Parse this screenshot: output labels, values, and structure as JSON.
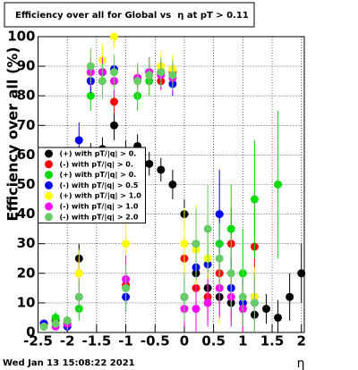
{
  "chart_data": {
    "type": "scatter",
    "title": "Efficiency over all for Global vs  η at pT > 0.11",
    "y_label": "Efficiency over all (%)",
    "x_label": "η",
    "timestamp": "Wed Jan 13 15:08:22 2021",
    "xlim": [
      -2.5,
      2.05
    ],
    "ylim": [
      0,
      100
    ],
    "xticks": [
      -2.5,
      -2,
      -1.5,
      -1,
      -0.5,
      0,
      0.5,
      1,
      1.5,
      2
    ],
    "yticks": [
      0,
      10,
      20,
      30,
      40,
      50,
      60,
      70,
      80,
      90,
      100
    ],
    "grid": true,
    "legend_position": "middle-left",
    "x": [
      -2.4,
      -2.2,
      -2.0,
      -1.8,
      -1.6,
      -1.4,
      -1.2,
      -1.0,
      -0.8,
      -0.6,
      -0.4,
      -0.2,
      0.0,
      0.2,
      0.4,
      0.6,
      0.8,
      1.0,
      1.2,
      1.4,
      1.6,
      1.8,
      2.0
    ],
    "series": [
      {
        "name": "(+) with pT/|q| > 0.",
        "color": "#000000",
        "values": [
          3,
          4,
          4,
          25,
          60,
          62,
          70,
          60,
          63,
          57,
          55,
          50,
          40,
          20,
          15,
          12,
          10,
          8,
          6,
          8,
          5,
          12,
          20
        ],
        "errors": [
          1,
          1,
          1,
          5,
          4,
          4,
          5,
          5,
          4,
          4,
          4,
          5,
          5,
          6,
          6,
          6,
          6,
          6,
          6,
          5,
          6,
          8,
          10
        ]
      },
      {
        "name": "(-) with pT/|q| > 0.",
        "color": "#ff0000",
        "values": [
          3,
          3,
          3,
          20,
          85,
          88,
          78,
          16,
          86,
          88,
          85,
          88,
          25,
          15,
          12,
          20,
          30,
          10,
          29,
          null,
          null,
          null,
          null
        ],
        "errors": [
          1,
          1,
          1,
          5,
          4,
          3,
          4,
          4,
          3,
          3,
          3,
          3,
          8,
          8,
          8,
          10,
          12,
          8,
          15,
          null,
          null,
          null,
          null
        ]
      },
      {
        "name": "(+) with pT/|q| > 0.",
        "color": "#00dd00",
        "values": [
          2,
          5,
          3,
          8,
          80,
          88,
          85,
          15,
          80,
          85,
          88,
          89,
          12,
          30,
          25,
          30,
          35,
          20,
          45,
          null,
          50,
          null,
          null
        ],
        "errors": [
          1,
          2,
          2,
          4,
          5,
          4,
          5,
          6,
          5,
          5,
          4,
          4,
          8,
          10,
          10,
          12,
          15,
          15,
          20,
          null,
          25,
          null,
          null
        ]
      },
      {
        "name": "(-) with pT/|q| > 0.5",
        "color": "#0000ff",
        "values": [
          3,
          3,
          2,
          65,
          85,
          88,
          89,
          12,
          86,
          88,
          88,
          84,
          12,
          22,
          23,
          40,
          15,
          10,
          12,
          null,
          null,
          null,
          null
        ],
        "errors": [
          1,
          1,
          1,
          6,
          4,
          3,
          3,
          5,
          3,
          3,
          3,
          4,
          6,
          8,
          8,
          15,
          10,
          8,
          8,
          null,
          null,
          null,
          null
        ]
      },
      {
        "name": "(+) with pT/|q| > 1.0",
        "color": "#ffff00",
        "values": [
          2,
          3,
          3,
          20,
          90,
          92,
          100,
          30,
          85,
          87,
          90,
          89,
          30,
          28,
          25,
          15,
          12,
          8,
          12,
          null,
          null,
          null,
          null
        ],
        "errors": [
          1,
          1,
          2,
          8,
          6,
          5,
          4,
          10,
          6,
          6,
          5,
          5,
          12,
          15,
          15,
          12,
          10,
          8,
          10,
          null,
          null,
          null,
          null
        ]
      },
      {
        "name": "(-) with pT/|q| > 1.0",
        "color": "#ff00ff",
        "values": [
          2,
          2,
          3,
          12,
          88,
          88,
          85,
          18,
          86,
          88,
          87,
          86,
          8,
          8,
          10,
          15,
          12,
          8,
          10,
          null,
          null,
          null,
          null
        ],
        "errors": [
          1,
          1,
          1,
          5,
          5,
          5,
          5,
          8,
          5,
          5,
          5,
          5,
          6,
          8,
          8,
          10,
          10,
          8,
          8,
          null,
          null,
          null,
          null
        ]
      },
      {
        "name": "(-) with pT/|q| > 2.0",
        "color": "#66cc66",
        "values": [
          2,
          3,
          4,
          12,
          90,
          85,
          88,
          15,
          85,
          87,
          88,
          87,
          12,
          30,
          35,
          25,
          20,
          12,
          10,
          null,
          null,
          null,
          null
        ],
        "errors": [
          1,
          1,
          2,
          6,
          6,
          6,
          6,
          8,
          6,
          6,
          5,
          5,
          8,
          12,
          15,
          12,
          12,
          10,
          10,
          null,
          null,
          null,
          null
        ]
      }
    ]
  }
}
